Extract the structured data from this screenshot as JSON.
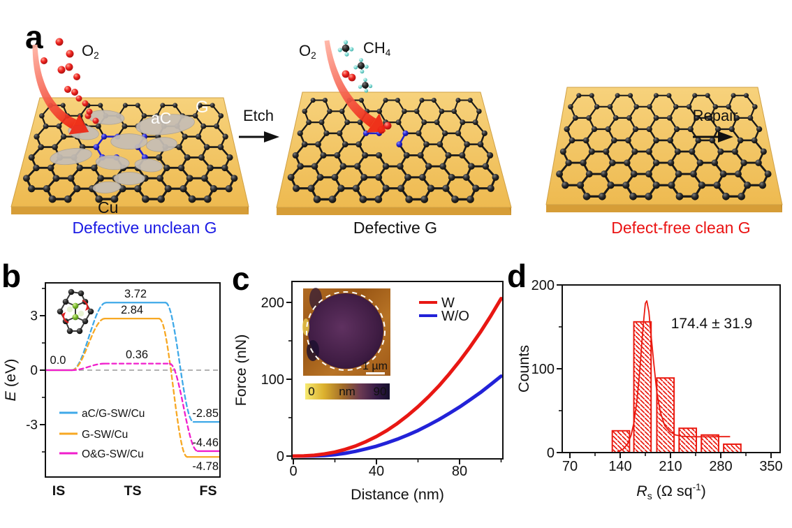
{
  "panel_labels": {
    "a": "a",
    "b": "b",
    "c": "c",
    "d": "d"
  },
  "panel_a": {
    "o2_left": {
      "base": "O",
      "sub": "2"
    },
    "o2_mid": {
      "base": "O",
      "sub": "2"
    },
    "ch4": {
      "base": "CH",
      "sub": "4"
    },
    "ac_label": "aC",
    "g_label": "G",
    "cu_label": "Cu",
    "etch_label": "Etch",
    "repair_label": "Repair",
    "captions": [
      {
        "text": "Defective unclean G",
        "color": "#1b1be4"
      },
      {
        "text": "Defective G",
        "color": "#111111"
      },
      {
        "text": "Defect-free clean G",
        "color": "#ea1313"
      }
    ]
  },
  "chart_data": [
    {
      "panel": "b",
      "type": "line",
      "subtype": "reaction-energy-profile",
      "ylabel_parts": {
        "symbol": "E",
        "rest": " (eV)"
      },
      "x_categories": [
        "IS",
        "TS",
        "FS"
      ],
      "yticks": [
        3,
        0,
        -3
      ],
      "ylim": [
        -5.9,
        4.8
      ],
      "zero_baseline_dashed": true,
      "initial_label": "0.0",
      "series": [
        {
          "name": "aC/G-SW/Cu",
          "color": "#3FA9E8",
          "initial": 0.0,
          "barrier": 3.72,
          "final": -2.85,
          "barrier_label": "3.72",
          "final_label": "-2.85",
          "plateau_dashed": false
        },
        {
          "name": "G-SW/Cu",
          "color": "#F7A823",
          "initial": 0.0,
          "barrier": 2.84,
          "final": -4.78,
          "barrier_label": "2.84",
          "final_label": "-4.78",
          "plateau_dashed": false
        },
        {
          "name": "O&G-SW/Cu",
          "color": "#F01ECC",
          "initial": 0.0,
          "barrier": 0.36,
          "final": -4.46,
          "barrier_label": "0.36",
          "final_label": "-4.46",
          "plateau_dashed": true
        }
      ]
    },
    {
      "panel": "c",
      "type": "line",
      "xlabel": "Distance (nm)",
      "ylabel": "Force (nN)",
      "xticks": [
        0,
        40,
        80
      ],
      "yticks": [
        0,
        100,
        200
      ],
      "xlim": [
        0,
        101
      ],
      "ylim": [
        -7,
        227
      ],
      "series": [
        {
          "name": "W",
          "color": "#E81713",
          "x": [
            0,
            5,
            10,
            15,
            20,
            25,
            30,
            35,
            40,
            45,
            50,
            55,
            60,
            65,
            70,
            75,
            80,
            85,
            90,
            95,
            100
          ],
          "y": [
            0,
            0.3,
            1,
            2.7,
            5.2,
            8.7,
            13.2,
            18.8,
            25.5,
            33.3,
            42.4,
            52.7,
            64.3,
            77.1,
            91.2,
            106.7,
            123.5,
            141.7,
            161.3,
            182.3,
            205
          ]
        },
        {
          "name": "W/O",
          "color": "#2222D8",
          "x": [
            0,
            5,
            10,
            15,
            20,
            25,
            30,
            35,
            40,
            45,
            50,
            55,
            60,
            65,
            70,
            75,
            80,
            85,
            90,
            95,
            100
          ],
          "y": [
            0,
            0,
            0.2,
            0.7,
            1.8,
            3.6,
            6.2,
            9.4,
            12.8,
            17.2,
            21.9,
            27.4,
            33.3,
            40.2,
            47.5,
            55.5,
            63.8,
            73.1,
            82.6,
            93.2,
            104
          ]
        }
      ],
      "inset": {
        "scale_bar_label": "1 µm",
        "colorbar_min": "0",
        "colorbar_unit": "nm",
        "colorbar_max": "90"
      }
    },
    {
      "panel": "d",
      "type": "bar",
      "xlabel_parts": {
        "symbol": "R",
        "sub": "s",
        "rest": " (Ω sq",
        "sup": "-1",
        "close": ")"
      },
      "ylabel": "Counts",
      "xticks": [
        70,
        140,
        210,
        280,
        350
      ],
      "yticks": [
        0,
        100,
        200
      ],
      "xlim": [
        70,
        350
      ],
      "ylim": [
        0,
        200
      ],
      "color": "#EA1A10",
      "annotation": "174.4 ± 31.9",
      "bars": {
        "lefts": [
          129,
          159,
          191,
          222,
          253,
          284
        ],
        "width": 24,
        "heights": [
          26,
          156,
          89,
          29,
          21,
          10
        ]
      },
      "fit_curve": {
        "x": [
          136,
          144,
          150,
          155,
          159,
          163,
          167,
          170,
          173,
          175,
          177,
          180,
          183,
          187,
          191,
          196,
          202,
          209,
          217,
          226,
          236,
          248,
          262,
          278,
          293
        ],
        "y": [
          1,
          4,
          10,
          20,
          35,
          60,
          95,
          130,
          160,
          178,
          181,
          168,
          140,
          105,
          72,
          48,
          32,
          25,
          21,
          19.5,
          19,
          18.8,
          18.8,
          19,
          19
        ]
      }
    }
  ]
}
